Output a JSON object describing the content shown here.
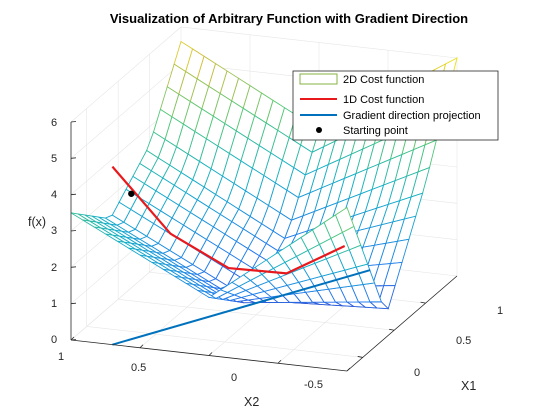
{
  "chart_data": {
    "type": "surface",
    "title": "Visualization of Arbitrary Function with Gradient Direction",
    "zlabel": "f(x)",
    "x2label": "X2",
    "x1label": "X1",
    "zlim": [
      0,
      6
    ],
    "x1lim": [
      -0.2,
      1.2
    ],
    "x2lim": [
      -1,
      1
    ],
    "z_ticks": [
      "0",
      "1",
      "2",
      "3",
      "4",
      "5",
      "6"
    ],
    "x2_ticks": [
      "1",
      "0.5",
      "0",
      "-0.5"
    ],
    "x1_ticks": [
      "0",
      "0.5",
      "1"
    ],
    "grid": true,
    "legend_position": "top-right",
    "series": [
      {
        "name": "2D Cost function",
        "color": "#77ac30"
      },
      {
        "name": "1D Cost function",
        "color": "#e8191d"
      },
      {
        "name": "Gradient direction projection",
        "color": "#0072bd"
      },
      {
        "name": "Starting point",
        "color": "#000000"
      }
    ],
    "surface_samples": {
      "x1": [
        -0.2,
        0.3,
        0.8,
        1.2
      ],
      "x2": [
        -1,
        0,
        1
      ],
      "f": [
        [
          4.5,
          0.6,
          3.3,
          6.0
        ],
        [
          1.6,
          0.5,
          1.5,
          3.6
        ],
        [
          3.5,
          2.4,
          3.5,
          5.6
        ]
      ]
    },
    "one_d_curve": {
      "x1": [
        -0.2,
        0.1,
        0.4,
        0.7,
        1.0
      ],
      "x2": [
        0.7,
        0.45,
        0.2,
        -0.05,
        -0.3
      ],
      "f": [
        4.9,
        2.6,
        1.2,
        0.6,
        0.9
      ]
    },
    "starting_point": {
      "x1": -0.1,
      "x2": 0.62,
      "f": 4.0
    }
  }
}
